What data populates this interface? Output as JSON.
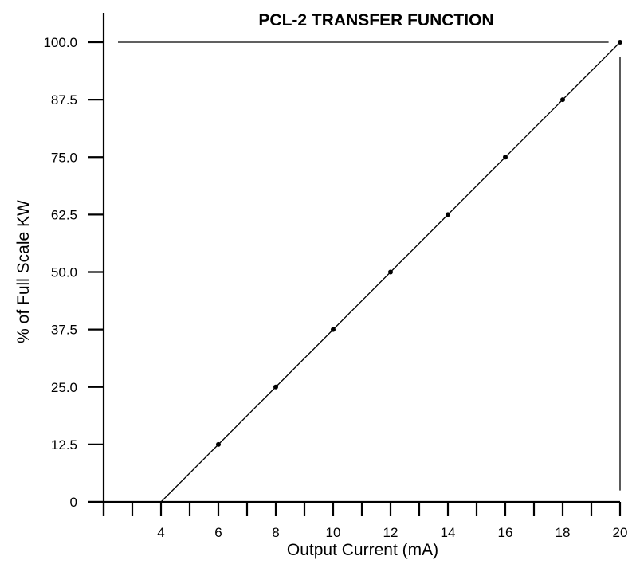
{
  "chart_data": {
    "type": "line",
    "title": "PCL-2 TRANSFER FUNCTION",
    "xlabel": "Output Current (mA)",
    "ylabel": "% of Full Scale KW",
    "xlim": [
      2,
      20
    ],
    "ylim": [
      0,
      100
    ],
    "x_ticks": [
      2,
      3,
      4,
      5,
      6,
      7,
      8,
      9,
      10,
      11,
      12,
      13,
      14,
      15,
      16,
      17,
      18,
      19,
      20
    ],
    "x_tick_labels": [
      "4",
      "6",
      "8",
      "10",
      "12",
      "14",
      "16",
      "18",
      "20"
    ],
    "x_tick_label_values": [
      4,
      6,
      8,
      10,
      12,
      14,
      16,
      18,
      20
    ],
    "y_ticks": [
      0,
      12.5,
      25.0,
      37.5,
      50.0,
      62.5,
      75.0,
      87.5,
      100.0
    ],
    "y_tick_labels": [
      "0",
      "12.5",
      "25.0",
      "37.5",
      "50.0",
      "62.5",
      "75.0",
      "87.5",
      "100.0"
    ],
    "grid": false,
    "legend": null,
    "series": [
      {
        "name": "Transfer function",
        "x": [
          4,
          6,
          8,
          10,
          12,
          14,
          16,
          18,
          20
        ],
        "values": [
          0,
          12.5,
          25.0,
          37.5,
          50.0,
          62.5,
          75.0,
          87.5,
          100.0
        ],
        "markers_at": [
          6,
          8,
          10,
          12,
          14,
          16,
          18,
          20
        ]
      }
    ],
    "reference_lines": [
      {
        "orientation": "horizontal",
        "y": 100.0,
        "x_from": 2.5,
        "x_to": 19.6
      },
      {
        "orientation": "vertical",
        "x": 20,
        "y_from": 2.5,
        "y_to": 96.8
      }
    ]
  }
}
